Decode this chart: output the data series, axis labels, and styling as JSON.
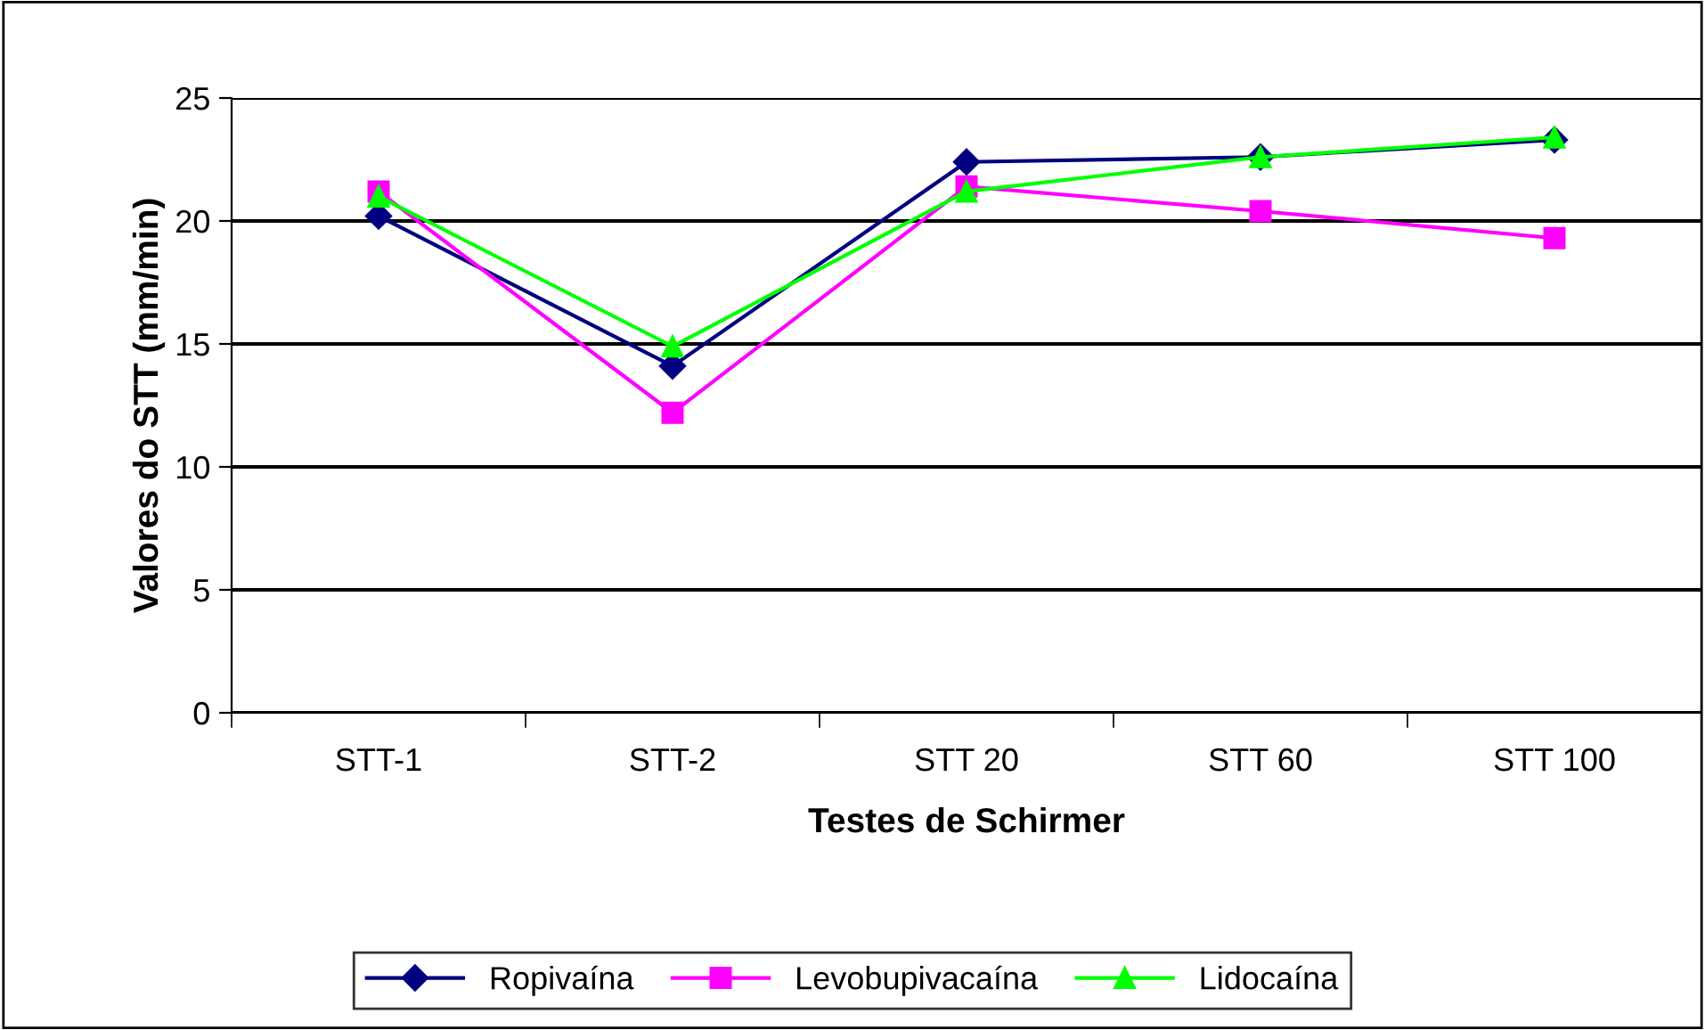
{
  "chart_data": {
    "type": "line",
    "xlabel": "Testes de Schirmer",
    "ylabel": "Valores do STT (mm/min)",
    "categories": [
      "STT-1",
      "STT-2",
      "STT 20",
      "STT 60",
      "STT 100"
    ],
    "series": [
      {
        "name": "Ropivaína",
        "color": "#000080",
        "marker": "diamond",
        "values": [
          20.2,
          14.1,
          22.4,
          22.6,
          23.3
        ]
      },
      {
        "name": "Levobupivacaína",
        "color": "#ff00ff",
        "marker": "square",
        "values": [
          21.2,
          12.2,
          21.4,
          20.4,
          19.3
        ]
      },
      {
        "name": "Lidocaína",
        "color": "#00ff00",
        "marker": "triangle",
        "values": [
          21.0,
          14.9,
          21.2,
          22.6,
          23.4
        ]
      }
    ],
    "ylim": [
      0,
      25
    ],
    "yticks": [
      0,
      5,
      10,
      15,
      20,
      25
    ],
    "grid": "y",
    "legend": "bottom",
    "line_style": "solid"
  }
}
